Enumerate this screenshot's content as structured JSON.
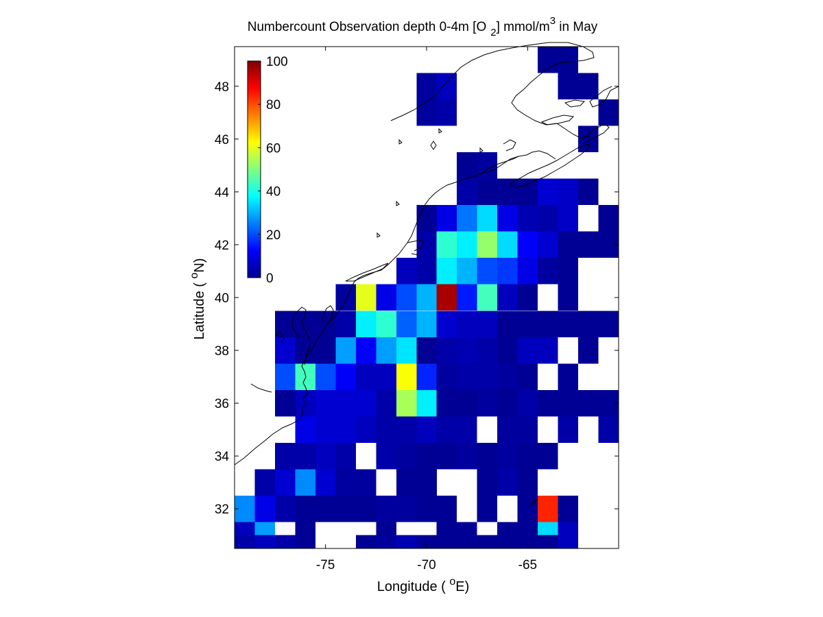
{
  "chart_data": {
    "type": "heatmap",
    "title": {
      "prefix": "Numbercount Observation depth 0-4m [O",
      "sub": "2",
      "mid": "] mmol/m",
      "sup": "3",
      "suffix": " in May"
    },
    "xlabel": {
      "prefix": "Longitude ( ",
      "sup": "o",
      "suffix": "E)"
    },
    "ylabel": {
      "prefix": "Latitude ( ",
      "sup": "o",
      "suffix": "N)"
    },
    "xlim": [
      -79.5,
      -60.5
    ],
    "ylim": [
      30.5,
      49.5
    ],
    "x_ticks": [
      {
        "value": -75,
        "label": "-75"
      },
      {
        "value": -70,
        "label": "-70"
      },
      {
        "value": -65,
        "label": "-65"
      }
    ],
    "y_ticks": [
      {
        "value": 32,
        "label": "32"
      },
      {
        "value": 34,
        "label": "34"
      },
      {
        "value": 36,
        "label": "36"
      },
      {
        "value": 38,
        "label": "38"
      },
      {
        "value": 40,
        "label": "40"
      },
      {
        "value": 42,
        "label": "42"
      },
      {
        "value": 44,
        "label": "44"
      },
      {
        "value": 46,
        "label": "46"
      },
      {
        "value": 48,
        "label": "48"
      }
    ],
    "cell_size_deg": 1,
    "colormap": "jet",
    "clim": [
      0,
      100
    ],
    "colorbar": {
      "placement": "top-left inside axes",
      "ticks": [
        {
          "value": 0,
          "label": "0"
        },
        {
          "value": 20,
          "label": "20"
        },
        {
          "value": 40,
          "label": "40"
        },
        {
          "value": 60,
          "label": "60"
        },
        {
          "value": 80,
          "label": "80"
        },
        {
          "value": 100,
          "label": "100"
        }
      ]
    },
    "grid": false,
    "coastline": "black outline of the US east coast, Nova Scotia, Newfoundland and Bermuda",
    "row_lats": [
      49,
      48,
      47,
      46,
      45,
      44,
      43,
      42,
      41,
      40,
      39,
      38,
      37,
      36,
      35,
      34,
      33,
      32,
      31
    ],
    "col_lons": [
      -79,
      -78,
      -77,
      -76,
      -75,
      -74,
      -73,
      -72,
      -71,
      -70,
      -69,
      -68,
      -67,
      -66,
      -65,
      -64,
      -63,
      -62,
      -61
    ],
    "grid_values": [
      [
        null,
        null,
        null,
        null,
        null,
        null,
        null,
        null,
        null,
        null,
        null,
        null,
        null,
        null,
        null,
        2,
        2,
        null,
        null
      ],
      [
        null,
        null,
        null,
        null,
        null,
        null,
        null,
        null,
        null,
        3,
        6,
        null,
        null,
        null,
        null,
        null,
        2,
        2,
        null
      ],
      [
        null,
        null,
        null,
        null,
        null,
        null,
        null,
        null,
        null,
        3,
        4,
        null,
        null,
        null,
        null,
        null,
        null,
        null,
        2
      ],
      [
        null,
        null,
        null,
        null,
        null,
        null,
        null,
        null,
        null,
        null,
        null,
        null,
        null,
        null,
        null,
        null,
        null,
        2,
        null
      ],
      [
        null,
        null,
        null,
        null,
        null,
        null,
        null,
        null,
        null,
        null,
        null,
        2,
        3,
        null,
        null,
        null,
        null,
        null,
        null
      ],
      [
        null,
        null,
        null,
        null,
        null,
        null,
        null,
        null,
        null,
        null,
        null,
        4,
        2,
        2,
        2,
        8,
        7,
        2,
        null
      ],
      [
        null,
        null,
        null,
        null,
        null,
        null,
        null,
        null,
        null,
        2,
        10,
        24,
        34,
        10,
        5,
        4,
        7,
        null,
        2
      ],
      [
        null,
        null,
        null,
        null,
        null,
        null,
        null,
        null,
        null,
        4,
        42,
        36,
        52,
        34,
        12,
        8,
        2,
        2,
        2
      ],
      [
        null,
        null,
        null,
        null,
        null,
        null,
        null,
        null,
        6,
        4,
        36,
        30,
        20,
        18,
        10,
        3,
        2,
        null,
        null
      ],
      [
        null,
        null,
        null,
        null,
        null,
        3,
        60,
        10,
        20,
        30,
        96,
        15,
        44,
        6,
        2,
        null,
        2,
        null,
        null
      ],
      [
        null,
        null,
        2,
        2,
        2,
        4,
        36,
        42,
        22,
        30,
        8,
        6,
        6,
        2,
        2,
        2,
        2,
        2,
        2
      ],
      [
        null,
        null,
        8,
        2,
        2,
        28,
        12,
        28,
        35,
        2,
        4,
        5,
        4,
        2,
        6,
        6,
        null,
        2,
        null
      ],
      [
        null,
        null,
        20,
        44,
        20,
        12,
        6,
        6,
        62,
        16,
        3,
        4,
        4,
        3,
        2,
        null,
        2,
        null,
        null
      ],
      [
        null,
        null,
        2,
        6,
        8,
        8,
        8,
        4,
        54,
        36,
        2,
        2,
        3,
        2,
        4,
        2,
        2,
        2,
        2
      ],
      [
        null,
        null,
        null,
        10,
        8,
        8,
        6,
        4,
        4,
        6,
        4,
        4,
        null,
        3,
        3,
        null,
        4,
        null,
        4
      ],
      [
        null,
        null,
        4,
        4,
        6,
        4,
        null,
        4,
        3,
        2,
        2,
        3,
        2,
        3,
        2,
        2,
        null,
        null,
        null
      ],
      [
        null,
        4,
        8,
        26,
        8,
        3,
        3,
        null,
        2,
        2,
        null,
        null,
        2,
        4,
        2,
        null,
        null,
        null,
        null
      ],
      [
        26,
        10,
        4,
        2,
        2,
        2,
        2,
        3,
        3,
        2,
        2,
        null,
        2,
        null,
        2,
        84,
        2,
        null,
        null
      ],
      [
        6,
        28,
        null,
        2,
        null,
        null,
        null,
        2,
        null,
        null,
        2,
        2,
        null,
        2,
        2,
        34,
        6,
        null,
        null
      ],
      [
        4,
        6,
        4,
        2,
        null,
        null,
        2,
        3,
        5,
        2,
        2,
        2,
        2,
        2,
        null,
        2,
        null,
        null,
        null
      ]
    ],
    "bottom_strip_note": "last row is a partial band at 30.5-31 N"
  }
}
